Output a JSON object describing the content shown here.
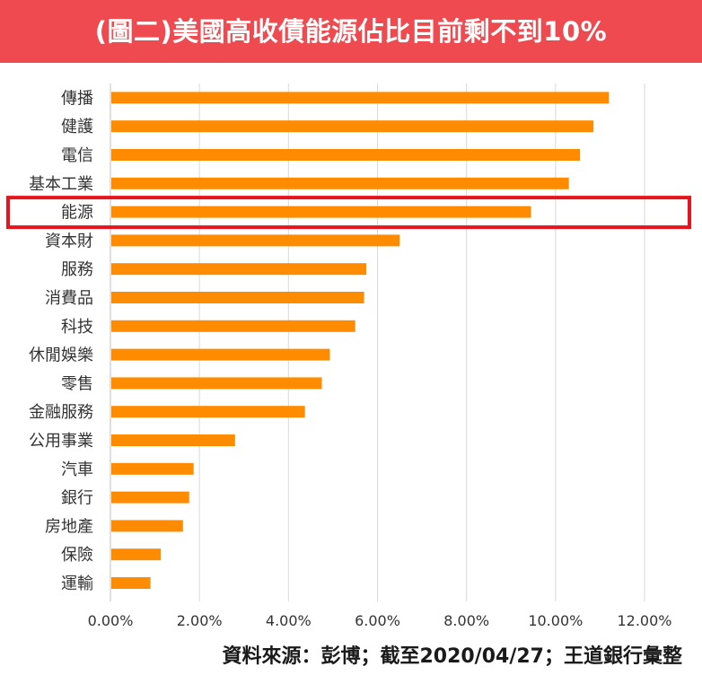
{
  "header": {
    "title": "(圖二)美國高收債能源佔比目前剩不到10%"
  },
  "footer": {
    "source": "資料來源：彭博；截至2020/04/27；王道銀行彙整"
  },
  "colors": {
    "banner": "#ef4a4f",
    "bar": "#ff8c00",
    "highlight": "#e8141b",
    "grid": "#d9d9d9"
  },
  "chart_data": {
    "type": "bar",
    "orientation": "horizontal",
    "categories": [
      "傳播",
      "健護",
      "電信",
      "基本工業",
      "能源",
      "資本財",
      "服務",
      "消費品",
      "科技",
      "休閒娛樂",
      "零售",
      "金融服務",
      "公用事業",
      "汽車",
      "銀行",
      "房地產",
      "保險",
      "運輸"
    ],
    "values": [
      11.2,
      10.85,
      10.55,
      10.3,
      9.45,
      6.5,
      5.75,
      5.7,
      5.5,
      4.93,
      4.75,
      4.37,
      2.8,
      1.87,
      1.77,
      1.63,
      1.13,
      0.9
    ],
    "x_ticks": [
      "0.00%",
      "2.00%",
      "4.00%",
      "6.00%",
      "8.00%",
      "10.00%",
      "12.00%"
    ],
    "xlim": [
      0,
      12
    ],
    "grid": true,
    "highlighted_category": "能源"
  }
}
